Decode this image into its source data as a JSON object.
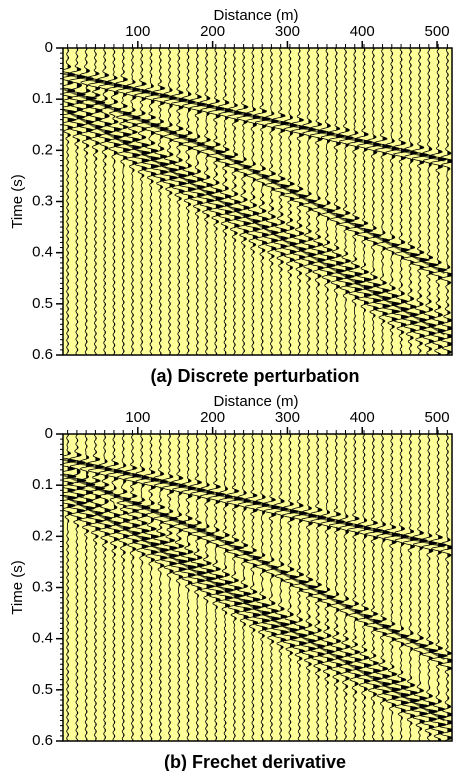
{
  "chart_data": [
    {
      "type": "wiggle",
      "title": "(a) Discrete perturbation",
      "x_label": "Distance (m)",
      "y_label": "Time (s)",
      "xlim": [
        0,
        520
      ],
      "xticks": [
        100,
        200,
        300,
        400,
        500
      ],
      "ylim": [
        0,
        0.6
      ],
      "yticks": [
        0,
        0.1,
        0.2,
        0.3,
        0.4,
        0.5,
        0.6
      ],
      "background": "#ffff99",
      "events": [
        {
          "x": [
            0,
            510
          ],
          "t": [
            0.05,
            0.22
          ]
        },
        {
          "x": [
            0,
            200,
            510
          ],
          "t": [
            0.08,
            0.2,
            0.44
          ]
        },
        {
          "x": [
            0,
            100,
            300,
            510
          ],
          "t": [
            0.12,
            0.2,
            0.38,
            0.56
          ]
        }
      ]
    },
    {
      "type": "wiggle",
      "title": "(b) Frechet derivative",
      "x_label": "Distance (m)",
      "y_label": "Time (s)",
      "xlim": [
        0,
        520
      ],
      "xticks": [
        100,
        200,
        300,
        400,
        500
      ],
      "ylim": [
        0,
        0.6
      ],
      "yticks": [
        0,
        0.1,
        0.2,
        0.3,
        0.4,
        0.5,
        0.6
      ],
      "background": "#ffff99",
      "events": [
        {
          "x": [
            0,
            510
          ],
          "t": [
            0.05,
            0.22
          ]
        },
        {
          "x": [
            0,
            200,
            510
          ],
          "t": [
            0.08,
            0.2,
            0.44
          ]
        },
        {
          "x": [
            0,
            100,
            300,
            510
          ],
          "t": [
            0.12,
            0.2,
            0.38,
            0.56
          ]
        }
      ]
    }
  ]
}
